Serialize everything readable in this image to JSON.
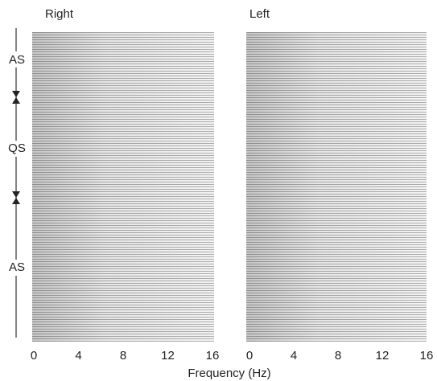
{
  "xlabel": "Frequency (Hz)",
  "states": [
    "AS",
    "QS",
    "AS"
  ],
  "chart_data": [
    {
      "type": "waterfall",
      "title": "Right",
      "xlim": [
        0,
        16
      ],
      "xticks": [
        0,
        4,
        8,
        12,
        16
      ]
    },
    {
      "type": "waterfall",
      "title": "Left",
      "xlim": [
        0,
        16
      ],
      "xticks": [
        0,
        4,
        8,
        12,
        16
      ]
    }
  ]
}
